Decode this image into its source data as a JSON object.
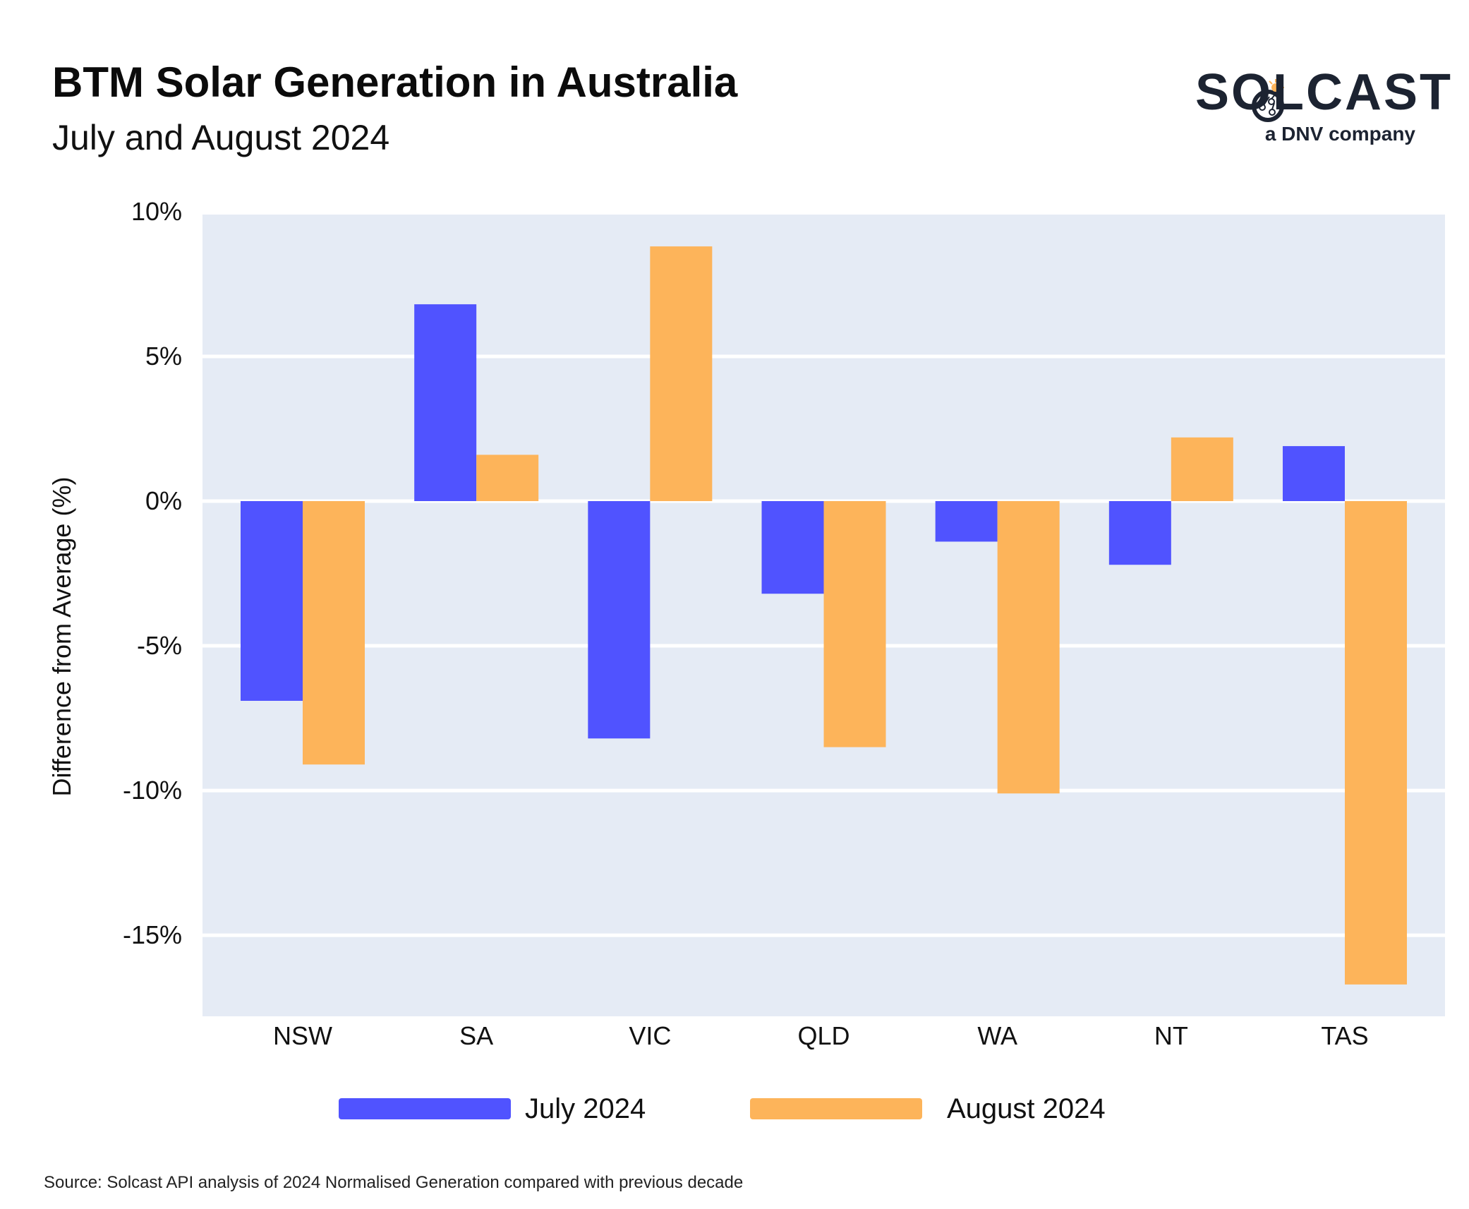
{
  "header": {
    "title": "BTM Solar Generation in Australia",
    "subtitle": "July and August 2024"
  },
  "logo": {
    "word": "SOLCAST",
    "sub": "a DNV company",
    "icon": "sun-icon"
  },
  "footer": {
    "source": "Source: Solcast API analysis of 2024 Normalised Generation compared with previous decade"
  },
  "colors": {
    "plot_bg": "#e5ebf5",
    "grid": "#ffffff",
    "july": "#5053ff",
    "august": "#fdb45a",
    "logo_dark": "#1c2331",
    "logo_sun": "#fdb45a"
  },
  "chart_data": {
    "type": "bar",
    "title": "BTM Solar Generation in Australia",
    "subtitle": "July and August 2024",
    "xlabel": "",
    "ylabel": "Difference from Average (%)",
    "categories": [
      "NSW",
      "SA",
      "VIC",
      "QLD",
      "WA",
      "NT",
      "TAS"
    ],
    "series": [
      {
        "name": "July 2024",
        "values": [
          -6.9,
          6.8,
          -8.2,
          -3.2,
          -1.4,
          -2.2,
          1.9
        ]
      },
      {
        "name": "August 2024",
        "values": [
          -9.1,
          1.6,
          8.8,
          -8.5,
          -10.1,
          2.2,
          -16.7
        ]
      }
    ],
    "ylim": [
      -17.8,
      9.9
    ],
    "yticks": [
      10,
      5,
      0,
      -5,
      -10,
      -15
    ],
    "ytick_labels": [
      "10%",
      "5%",
      "0%",
      "-5%",
      "-10%",
      "-15%"
    ],
    "grid": true,
    "legend": "bottom-center"
  }
}
